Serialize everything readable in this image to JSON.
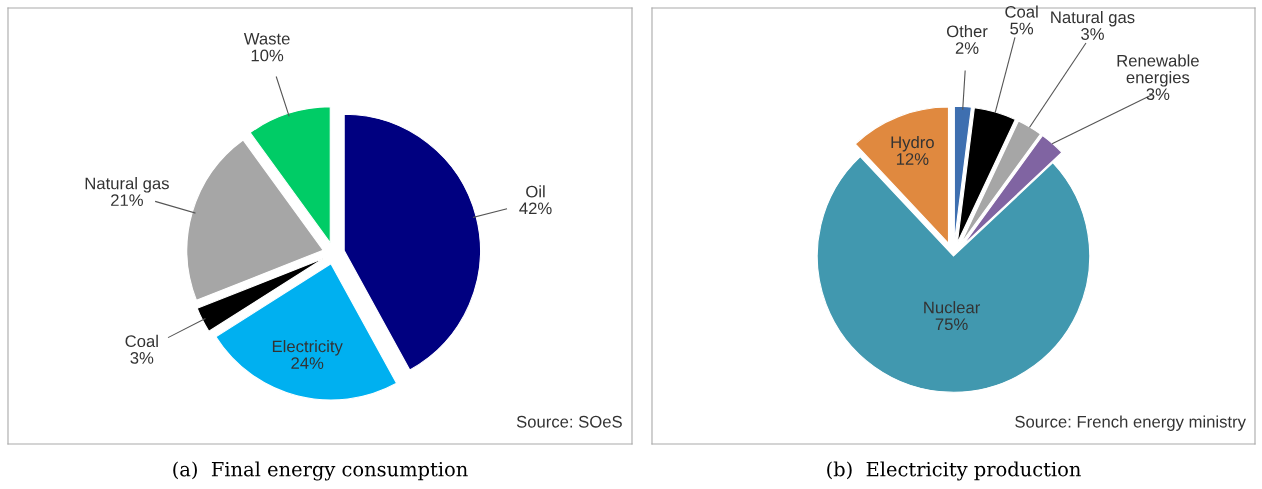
{
  "chart_data": [
    {
      "type": "pie",
      "title": "(a)  Final energy consumption",
      "categories": [
        "Oil",
        "Electricity",
        "Coal",
        "Natural gas",
        "Waste"
      ],
      "values": [
        42,
        24,
        3,
        21,
        10
      ],
      "value_labels": [
        "42%",
        "24%",
        "3%",
        "21%",
        "10%"
      ],
      "colors": [
        "#000080",
        "#00b0f0",
        "#000000",
        "#a6a6a6",
        "#00cc66"
      ],
      "annotations": [
        "Source: SOeS"
      ],
      "legend": false
    },
    {
      "type": "pie",
      "title": "(b)  Electricity production",
      "categories": [
        "Other",
        "Coal",
        "Natural gas",
        "Renewable energies",
        "Nuclear",
        "Hydro"
      ],
      "values": [
        2,
        5,
        3,
        3,
        75,
        12
      ],
      "value_labels": [
        "2%",
        "5%",
        "3%",
        "3%",
        "75%",
        "12%"
      ],
      "colors": [
        "#3e6fb0",
        "#000000",
        "#a6a6a6",
        "#8064a2",
        "#4198af",
        "#e0893f"
      ],
      "annotations": [
        "Source: French energy ministry"
      ],
      "legend": false
    }
  ]
}
